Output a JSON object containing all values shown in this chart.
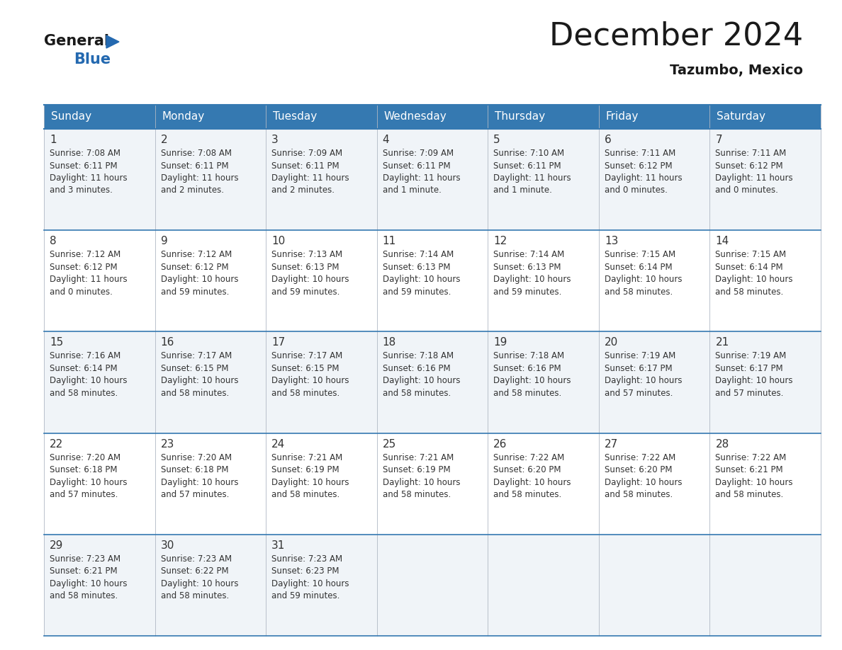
{
  "title": "December 2024",
  "subtitle": "Tazumbo, Mexico",
  "header_color": "#3579b1",
  "header_text_color": "#ffffff",
  "weekdays": [
    "Sunday",
    "Monday",
    "Tuesday",
    "Wednesday",
    "Thursday",
    "Friday",
    "Saturday"
  ],
  "bg_color_odd": "#f0f4f8",
  "bg_color_even": "#ffffff",
  "border_color": "#3579b1",
  "text_color": "#333333",
  "days": [
    {
      "day": 1,
      "col": 0,
      "row": 0,
      "sunrise": "7:08 AM",
      "sunset": "6:11 PM",
      "daylight": "11 hours\nand 3 minutes."
    },
    {
      "day": 2,
      "col": 1,
      "row": 0,
      "sunrise": "7:08 AM",
      "sunset": "6:11 PM",
      "daylight": "11 hours\nand 2 minutes."
    },
    {
      "day": 3,
      "col": 2,
      "row": 0,
      "sunrise": "7:09 AM",
      "sunset": "6:11 PM",
      "daylight": "11 hours\nand 2 minutes."
    },
    {
      "day": 4,
      "col": 3,
      "row": 0,
      "sunrise": "7:09 AM",
      "sunset": "6:11 PM",
      "daylight": "11 hours\nand 1 minute."
    },
    {
      "day": 5,
      "col": 4,
      "row": 0,
      "sunrise": "7:10 AM",
      "sunset": "6:11 PM",
      "daylight": "11 hours\nand 1 minute."
    },
    {
      "day": 6,
      "col": 5,
      "row": 0,
      "sunrise": "7:11 AM",
      "sunset": "6:12 PM",
      "daylight": "11 hours\nand 0 minutes."
    },
    {
      "day": 7,
      "col": 6,
      "row": 0,
      "sunrise": "7:11 AM",
      "sunset": "6:12 PM",
      "daylight": "11 hours\nand 0 minutes."
    },
    {
      "day": 8,
      "col": 0,
      "row": 1,
      "sunrise": "7:12 AM",
      "sunset": "6:12 PM",
      "daylight": "11 hours\nand 0 minutes."
    },
    {
      "day": 9,
      "col": 1,
      "row": 1,
      "sunrise": "7:12 AM",
      "sunset": "6:12 PM",
      "daylight": "10 hours\nand 59 minutes."
    },
    {
      "day": 10,
      "col": 2,
      "row": 1,
      "sunrise": "7:13 AM",
      "sunset": "6:13 PM",
      "daylight": "10 hours\nand 59 minutes."
    },
    {
      "day": 11,
      "col": 3,
      "row": 1,
      "sunrise": "7:14 AM",
      "sunset": "6:13 PM",
      "daylight": "10 hours\nand 59 minutes."
    },
    {
      "day": 12,
      "col": 4,
      "row": 1,
      "sunrise": "7:14 AM",
      "sunset": "6:13 PM",
      "daylight": "10 hours\nand 59 minutes."
    },
    {
      "day": 13,
      "col": 5,
      "row": 1,
      "sunrise": "7:15 AM",
      "sunset": "6:14 PM",
      "daylight": "10 hours\nand 58 minutes."
    },
    {
      "day": 14,
      "col": 6,
      "row": 1,
      "sunrise": "7:15 AM",
      "sunset": "6:14 PM",
      "daylight": "10 hours\nand 58 minutes."
    },
    {
      "day": 15,
      "col": 0,
      "row": 2,
      "sunrise": "7:16 AM",
      "sunset": "6:14 PM",
      "daylight": "10 hours\nand 58 minutes."
    },
    {
      "day": 16,
      "col": 1,
      "row": 2,
      "sunrise": "7:17 AM",
      "sunset": "6:15 PM",
      "daylight": "10 hours\nand 58 minutes."
    },
    {
      "day": 17,
      "col": 2,
      "row": 2,
      "sunrise": "7:17 AM",
      "sunset": "6:15 PM",
      "daylight": "10 hours\nand 58 minutes."
    },
    {
      "day": 18,
      "col": 3,
      "row": 2,
      "sunrise": "7:18 AM",
      "sunset": "6:16 PM",
      "daylight": "10 hours\nand 58 minutes."
    },
    {
      "day": 19,
      "col": 4,
      "row": 2,
      "sunrise": "7:18 AM",
      "sunset": "6:16 PM",
      "daylight": "10 hours\nand 58 minutes."
    },
    {
      "day": 20,
      "col": 5,
      "row": 2,
      "sunrise": "7:19 AM",
      "sunset": "6:17 PM",
      "daylight": "10 hours\nand 57 minutes."
    },
    {
      "day": 21,
      "col": 6,
      "row": 2,
      "sunrise": "7:19 AM",
      "sunset": "6:17 PM",
      "daylight": "10 hours\nand 57 minutes."
    },
    {
      "day": 22,
      "col": 0,
      "row": 3,
      "sunrise": "7:20 AM",
      "sunset": "6:18 PM",
      "daylight": "10 hours\nand 57 minutes."
    },
    {
      "day": 23,
      "col": 1,
      "row": 3,
      "sunrise": "7:20 AM",
      "sunset": "6:18 PM",
      "daylight": "10 hours\nand 57 minutes."
    },
    {
      "day": 24,
      "col": 2,
      "row": 3,
      "sunrise": "7:21 AM",
      "sunset": "6:19 PM",
      "daylight": "10 hours\nand 58 minutes."
    },
    {
      "day": 25,
      "col": 3,
      "row": 3,
      "sunrise": "7:21 AM",
      "sunset": "6:19 PM",
      "daylight": "10 hours\nand 58 minutes."
    },
    {
      "day": 26,
      "col": 4,
      "row": 3,
      "sunrise": "7:22 AM",
      "sunset": "6:20 PM",
      "daylight": "10 hours\nand 58 minutes."
    },
    {
      "day": 27,
      "col": 5,
      "row": 3,
      "sunrise": "7:22 AM",
      "sunset": "6:20 PM",
      "daylight": "10 hours\nand 58 minutes."
    },
    {
      "day": 28,
      "col": 6,
      "row": 3,
      "sunrise": "7:22 AM",
      "sunset": "6:21 PM",
      "daylight": "10 hours\nand 58 minutes."
    },
    {
      "day": 29,
      "col": 0,
      "row": 4,
      "sunrise": "7:23 AM",
      "sunset": "6:21 PM",
      "daylight": "10 hours\nand 58 minutes."
    },
    {
      "day": 30,
      "col": 1,
      "row": 4,
      "sunrise": "7:23 AM",
      "sunset": "6:22 PM",
      "daylight": "10 hours\nand 58 minutes."
    },
    {
      "day": 31,
      "col": 2,
      "row": 4,
      "sunrise": "7:23 AM",
      "sunset": "6:23 PM",
      "daylight": "10 hours\nand 59 minutes."
    }
  ],
  "logo_color_general": "#1a1a1a",
  "logo_color_blue": "#2469b0",
  "logo_triangle_color": "#2469b0",
  "title_fontsize": 32,
  "subtitle_fontsize": 14,
  "header_fontsize": 11,
  "day_num_fontsize": 11,
  "cell_text_fontsize": 8.5
}
